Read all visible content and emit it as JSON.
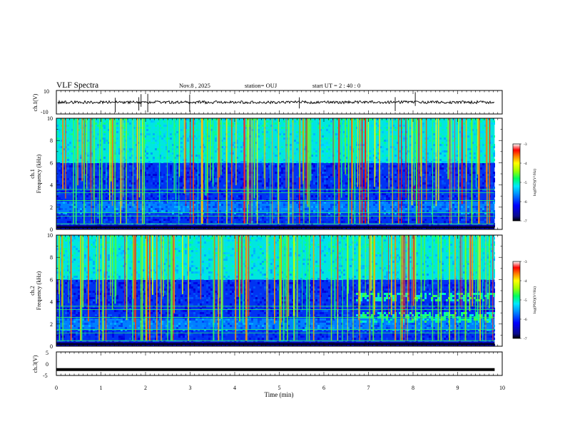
{
  "header": {
    "title": "VLF Spectra",
    "date": "Nov.8  , 2025",
    "station": "station= OUJ",
    "start_ut": "start  UT  =   2  : 40 : 0"
  },
  "colors": {
    "waveform": "#000000",
    "colormap": [
      "#0a0a8a",
      "#0000ff",
      "#0080ff",
      "#00e0ff",
      "#00ff80",
      "#80ff00",
      "#ffff00",
      "#ff8000",
      "#ff0000",
      "#ffffff"
    ]
  },
  "chart_data": [
    {
      "type": "line",
      "name": "ch1-waveform",
      "ylabel": "ch.1(V)",
      "ylim": [
        -10,
        10
      ],
      "ytick_labels": [
        "10",
        "-10"
      ],
      "x_range_min": [
        0,
        9.83
      ],
      "baseline_value": 0,
      "note": "broadband noise trace around 0 V with sparse impulsive spikes"
    },
    {
      "type": "heatmap",
      "name": "ch1-spectrogram",
      "ylabel": "Frequency (kHz)",
      "channel_label": "ch.1",
      "ylim": [
        0,
        10
      ],
      "ytick_labels": [
        "0",
        "2",
        "4",
        "6",
        "8",
        "10"
      ],
      "x_range_min": [
        0,
        9.83
      ],
      "colorbar": {
        "label": "log(PSD)(V²/Hz)",
        "range": [
          -7,
          -3
        ],
        "tick_labels": [
          "-3",
          "-4",
          "-5",
          "-6",
          "-7"
        ]
      },
      "bands_khz": [
        {
          "from": 0.0,
          "to": 0.4,
          "level": "dark"
        },
        {
          "from": 0.4,
          "to": 1.5,
          "level": "low"
        },
        {
          "from": 1.5,
          "to": 2.5,
          "level": "mid-low"
        },
        {
          "from": 2.5,
          "to": 6.0,
          "level": "low"
        },
        {
          "from": 6.0,
          "to": 10.0,
          "level": "mid"
        }
      ],
      "enhanced_region": null
    },
    {
      "type": "heatmap",
      "name": "ch2-spectrogram",
      "ylabel": "Frequency (kHz)",
      "channel_label": "ch.2",
      "ylim": [
        0,
        10
      ],
      "ytick_labels": [
        "0",
        "2",
        "4",
        "6",
        "8",
        "10"
      ],
      "x_range_min": [
        0,
        9.83
      ],
      "colorbar": {
        "label": "log(PSD)(V²/Hz)",
        "range": [
          -7,
          -3
        ],
        "tick_labels": [
          "-3",
          "-4",
          "-5",
          "-6",
          "-7"
        ]
      },
      "bands_khz": [
        {
          "from": 0.0,
          "to": 0.4,
          "level": "dark"
        },
        {
          "from": 0.4,
          "to": 1.5,
          "level": "low"
        },
        {
          "from": 1.5,
          "to": 2.5,
          "level": "mid-low"
        },
        {
          "from": 2.5,
          "to": 6.0,
          "level": "low"
        },
        {
          "from": 6.0,
          "to": 10.0,
          "level": "mid"
        }
      ],
      "enhanced_region": {
        "start_min": 6.7,
        "bands_khz": [
          [
            2.3,
            3.2
          ],
          [
            4.2,
            4.9
          ]
        ]
      }
    },
    {
      "type": "line",
      "name": "ch3-waveform",
      "ylabel": "ch.3(V)",
      "ylim": [
        -5,
        5
      ],
      "ytick_labels": [
        "5",
        "0",
        "-5"
      ],
      "x_range_min": [
        0,
        9.83
      ],
      "baseline_value": -2.5,
      "note": "flat thick line"
    }
  ],
  "xaxis": {
    "label": "Time (min)",
    "range": [
      0,
      10
    ],
    "tick_labels": [
      "0",
      "1",
      "2",
      "3",
      "4",
      "5",
      "6",
      "7",
      "8",
      "9",
      "10"
    ]
  }
}
